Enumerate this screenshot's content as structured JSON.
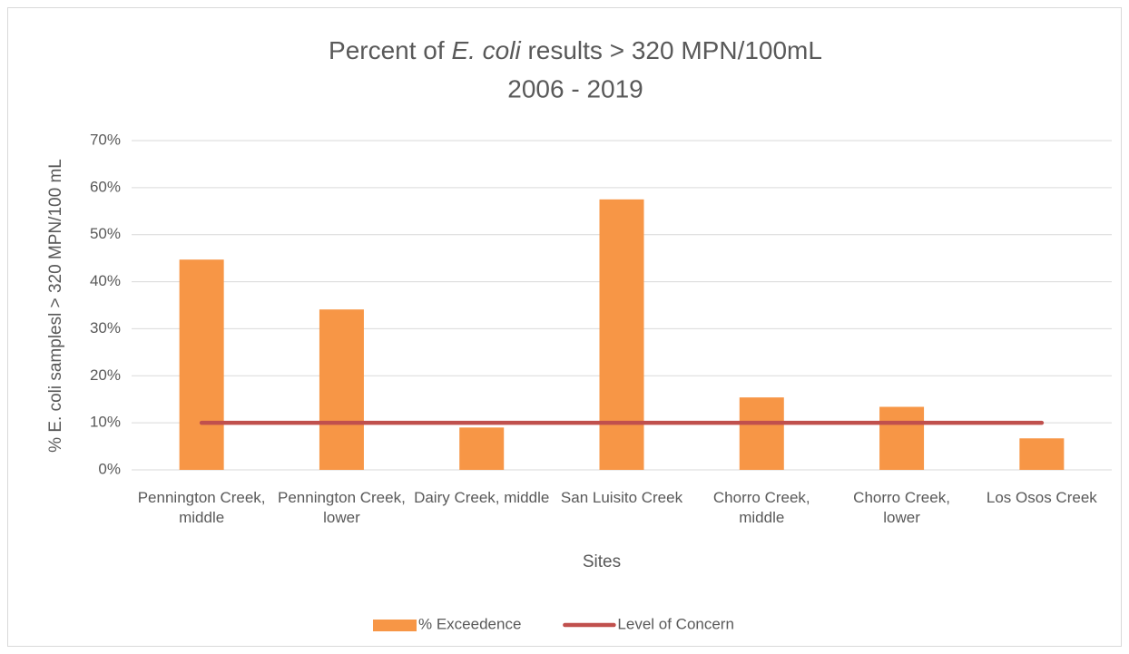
{
  "chart_data": {
    "type": "bar",
    "title": [
      {
        "text": "Percent of "
      },
      {
        "text": "E. coli",
        "italic": true
      },
      {
        "text": " results > 320 MPN/100mL"
      }
    ],
    "subtitle": "2006 - 2019",
    "x_label": "Sites",
    "y_label": "% E. coli samplesl > 320 MPN/100 mL",
    "categories": [
      "Pennington Creek, middle",
      "Pennington Creek, lower",
      "Dairy Creek, middle",
      "San Luisito Creek",
      "Chorro Creek, middle",
      "Chorro Creek, lower",
      "Los Osos Creek"
    ],
    "series": [
      {
        "name": "% Exceedence",
        "type": "bar",
        "color": "#f79646",
        "values": [
          44.7,
          34.1,
          9,
          57.5,
          15.4,
          13.4,
          6.7
        ]
      },
      {
        "name": "Level of Concern",
        "type": "line",
        "color": "#c0504d",
        "values": [
          10,
          10,
          10,
          10,
          10,
          10,
          10
        ]
      }
    ],
    "ylim": [
      0,
      70
    ],
    "yticks": [
      {
        "value": 0,
        "label": "0%"
      },
      {
        "value": 10,
        "label": "10%"
      },
      {
        "value": 20,
        "label": "20%"
      },
      {
        "value": 30,
        "label": "30%"
      },
      {
        "value": 40,
        "label": "40%"
      },
      {
        "value": 50,
        "label": "50%"
      },
      {
        "value": 60,
        "label": "60%"
      },
      {
        "value": 70,
        "label": "70%"
      }
    ],
    "grid": true,
    "legend": "bottom"
  }
}
